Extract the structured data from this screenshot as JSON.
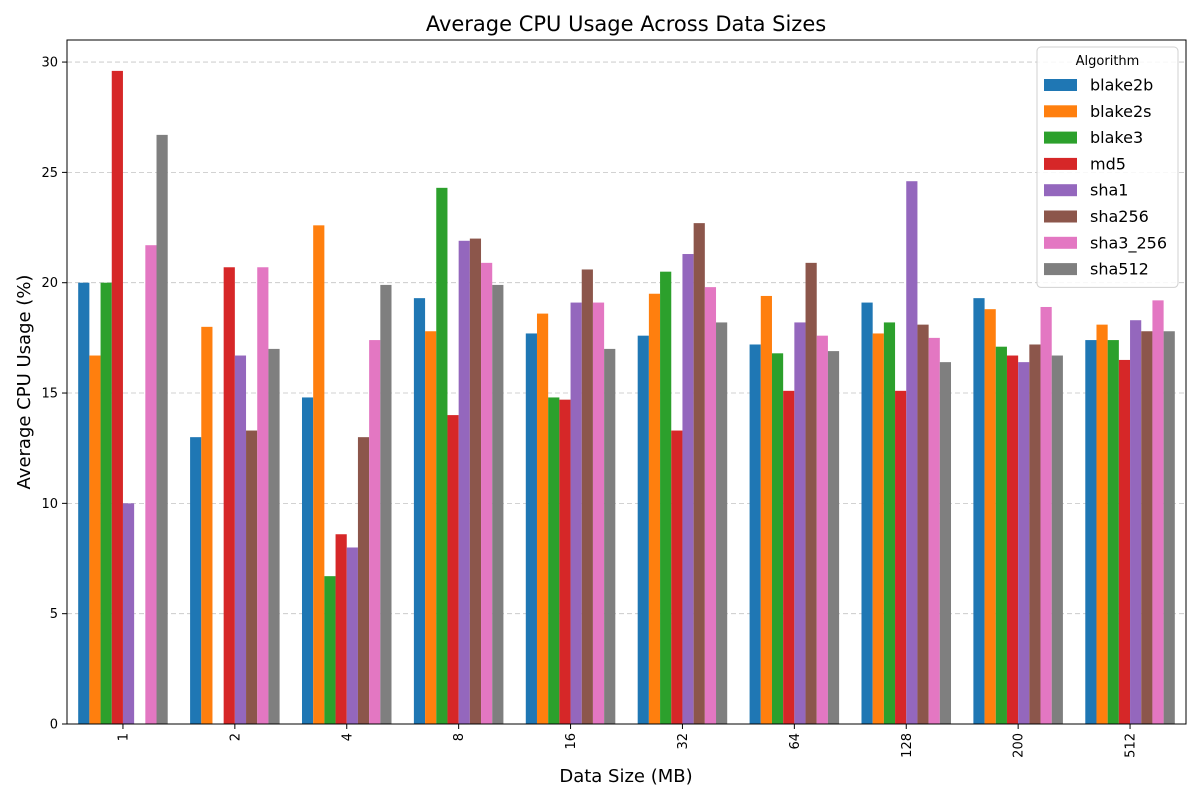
{
  "chart_data": {
    "type": "bar",
    "title": "Average CPU Usage Across Data Sizes",
    "xlabel": "Data Size (MB)",
    "ylabel": "Average CPU Usage (%)",
    "categories": [
      "1",
      "2",
      "4",
      "8",
      "16",
      "32",
      "64",
      "128",
      "200",
      "512"
    ],
    "ylim": [
      0,
      31
    ],
    "yticks": [
      0,
      5,
      10,
      15,
      20,
      25,
      30
    ],
    "grid": "y-dashed",
    "legend": {
      "title": "Algorithm",
      "placement": "top-right"
    },
    "series": [
      {
        "name": "blake2b",
        "color": "#1f77b4",
        "values": [
          20.0,
          13.0,
          14.8,
          19.3,
          17.7,
          17.6,
          17.2,
          19.1,
          19.3,
          17.4
        ]
      },
      {
        "name": "blake2s",
        "color": "#ff7f0e",
        "values": [
          16.7,
          18.0,
          22.6,
          17.8,
          18.6,
          19.5,
          19.4,
          17.7,
          18.8,
          18.1
        ]
      },
      {
        "name": "blake3",
        "color": "#2ca02c",
        "values": [
          20.0,
          0.0,
          6.7,
          24.3,
          14.8,
          20.5,
          16.8,
          18.2,
          17.1,
          17.4
        ]
      },
      {
        "name": "md5",
        "color": "#d62728",
        "values": [
          29.6,
          20.7,
          8.6,
          14.0,
          14.7,
          13.3,
          15.1,
          15.1,
          16.7,
          16.5
        ]
      },
      {
        "name": "sha1",
        "color": "#9467bd",
        "values": [
          10.0,
          16.7,
          8.0,
          21.9,
          19.1,
          21.3,
          18.2,
          24.6,
          16.4,
          18.3
        ]
      },
      {
        "name": "sha256",
        "color": "#8c564b",
        "values": [
          0.0,
          13.3,
          13.0,
          22.0,
          20.6,
          22.7,
          20.9,
          18.1,
          17.2,
          17.8
        ]
      },
      {
        "name": "sha3_256",
        "color": "#e377c2",
        "values": [
          21.7,
          20.7,
          17.4,
          20.9,
          19.1,
          19.8,
          17.6,
          17.5,
          18.9,
          19.2
        ]
      },
      {
        "name": "sha512",
        "color": "#7f7f7f",
        "values": [
          26.7,
          17.0,
          19.9,
          19.9,
          17.0,
          18.2,
          16.9,
          16.4,
          16.7,
          17.8
        ]
      }
    ]
  }
}
